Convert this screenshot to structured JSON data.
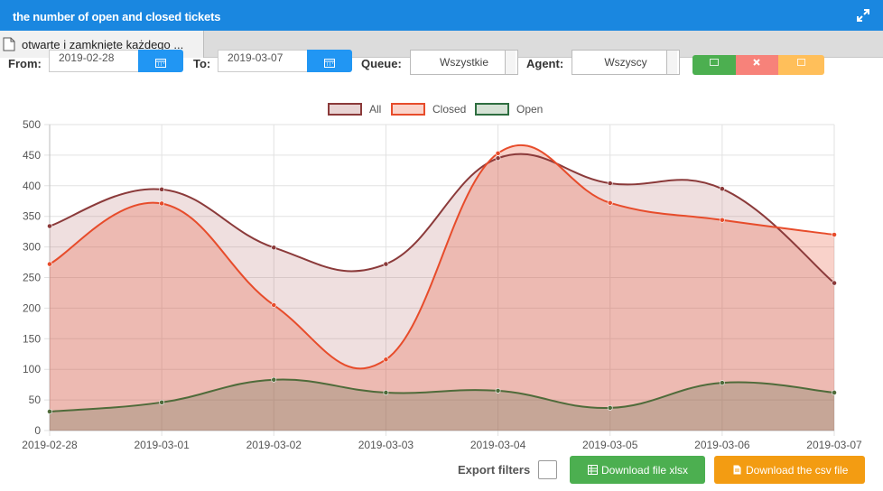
{
  "window": {
    "title": "the number of open and closed tickets"
  },
  "tab": {
    "label": "otwarte i zamknięte każdego ..."
  },
  "filters": {
    "from_label": "From:",
    "from_value": "2019-02-28",
    "to_label": "To:",
    "to_value": "2019-03-07",
    "queue_label": "Queue:",
    "queue_value": "Wszystkie",
    "agent_label": "Agent:",
    "agent_value": "Wszyscy"
  },
  "colors": {
    "titlebar": "#1a87e0",
    "all": "#8b3a3a",
    "closed": "#e74c2b",
    "open": "#2e6e40",
    "green_btn": "#4caf50",
    "orange_btn": "#f39c12"
  },
  "footer": {
    "export_label": "Export filters",
    "xlsx_label": "Download file xlsx",
    "csv_label": "Download the csv file"
  },
  "chart_data": {
    "type": "area",
    "categories": [
      "2019-02-28",
      "2019-03-01",
      "2019-03-02",
      "2019-03-03",
      "2019-03-04",
      "2019-03-05",
      "2019-03-06",
      "2019-03-07"
    ],
    "series": [
      {
        "name": "All",
        "values": [
          334,
          394,
          299,
          272,
          445,
          404,
          395,
          241
        ]
      },
      {
        "name": "Closed",
        "values": [
          272,
          371,
          205,
          116,
          453,
          372,
          344,
          320
        ]
      },
      {
        "name": "Open",
        "values": [
          31,
          46,
          83,
          62,
          65,
          37,
          78,
          62
        ]
      }
    ],
    "yticks": [
      0,
      50,
      100,
      150,
      200,
      250,
      300,
      350,
      400,
      450,
      500
    ],
    "ylim": [
      0,
      500
    ],
    "legend": "top-center",
    "grid": true
  }
}
